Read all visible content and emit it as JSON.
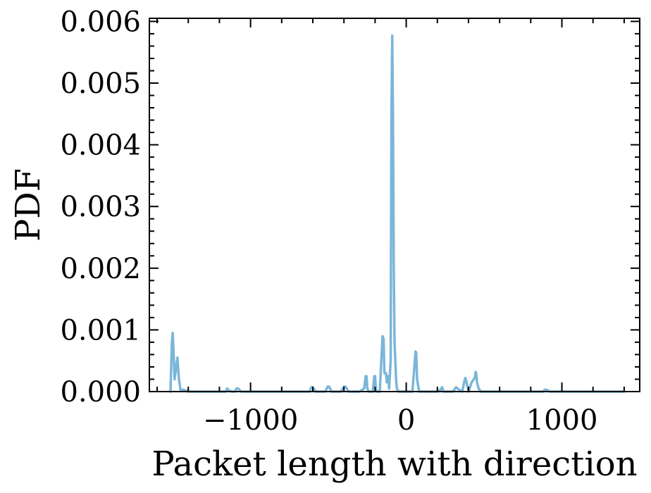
{
  "chart_data": {
    "type": "line",
    "title": "",
    "xlabel": "Packet length with direction",
    "ylabel": "PDF",
    "xlim": [
      -1650,
      1500
    ],
    "ylim": [
      0,
      0.00605
    ],
    "xticks": [
      -1000,
      0,
      1000
    ],
    "xtick_labels": [
      "−1000",
      "0",
      "1000"
    ],
    "yticks": [
      0,
      0.001,
      0.002,
      0.003,
      0.004,
      0.005,
      0.006
    ],
    "ytick_labels": [
      "0.000",
      "0.001",
      "0.002",
      "0.003",
      "0.004",
      "0.005",
      "0.006"
    ],
    "x_minor_step": 200,
    "y_minor_step": 0.0002,
    "grid": false,
    "line_color": "#7bb6d9",
    "series": [
      {
        "x": [
          -1514,
          -1506,
          -1500,
          -1494,
          -1488,
          -1480,
          -1470,
          -1460,
          -1450,
          -1430,
          -1400,
          -1350,
          -1300,
          -1200,
          -1160,
          -1150,
          -1140,
          -1120,
          -1100,
          -1090,
          -1080,
          -1060,
          -900,
          -700,
          -620,
          -610,
          -600,
          -580,
          -520,
          -505,
          -495,
          -480,
          -420,
          -400,
          -390,
          -370,
          -300,
          -270,
          -260,
          -255,
          -250,
          -240,
          -215,
          -205,
          -200,
          -195,
          -190,
          -170,
          -152,
          -145,
          -140,
          -135,
          -130,
          -125,
          -120,
          -115,
          -110,
          -100,
          -98,
          -95,
          -90,
          -85,
          -80,
          -75,
          -70,
          -65,
          -60,
          -50,
          -40,
          40,
          52,
          60,
          64,
          70,
          76,
          84,
          100,
          150,
          200,
          220,
          230,
          240,
          260,
          300,
          320,
          340,
          360,
          374,
          380,
          386,
          400,
          420,
          440,
          446,
          450,
          455,
          465,
          480,
          500,
          600,
          880,
          890,
          900,
          910,
          920,
          1000,
          1400
        ],
        "y": [
          0,
          0.00075,
          0.00095,
          0.0006,
          0.0002,
          0.00035,
          0.00055,
          0.0002,
          3e-05,
          3e-05,
          0,
          0,
          0,
          0,
          0,
          5e-05,
          2e-05,
          0,
          0,
          5e-05,
          5e-05,
          0,
          0,
          0,
          0,
          7e-05,
          7e-05,
          0,
          0,
          8e-05,
          8e-05,
          0,
          0,
          8e-05,
          8e-05,
          0,
          0,
          5e-05,
          0.00025,
          0.00025,
          5e-05,
          0,
          0,
          0.00025,
          0.00025,
          5e-05,
          0,
          0,
          0.0009,
          0.00085,
          0.0003,
          0.0003,
          0.0003,
          0.00015,
          0.0002,
          0.00025,
          5e-05,
          0.0005,
          0.002,
          0.0045,
          0.00577,
          0.0045,
          0.002,
          0.0008,
          0.0005,
          0.0002,
          5e-05,
          0,
          0,
          0,
          0.0004,
          0.00065,
          0.00063,
          0.0002,
          0.0001,
          0,
          0,
          0,
          0,
          3e-05,
          7e-05,
          0,
          0,
          0,
          7e-05,
          3e-05,
          0,
          0.00017,
          0.00022,
          0.00017,
          0,
          0.00015,
          0.00022,
          0.00032,
          0.00028,
          0.00015,
          5e-05,
          0,
          0,
          0,
          0,
          3e-05,
          3e-05,
          2e-05,
          0,
          0,
          0
        ]
      }
    ]
  }
}
